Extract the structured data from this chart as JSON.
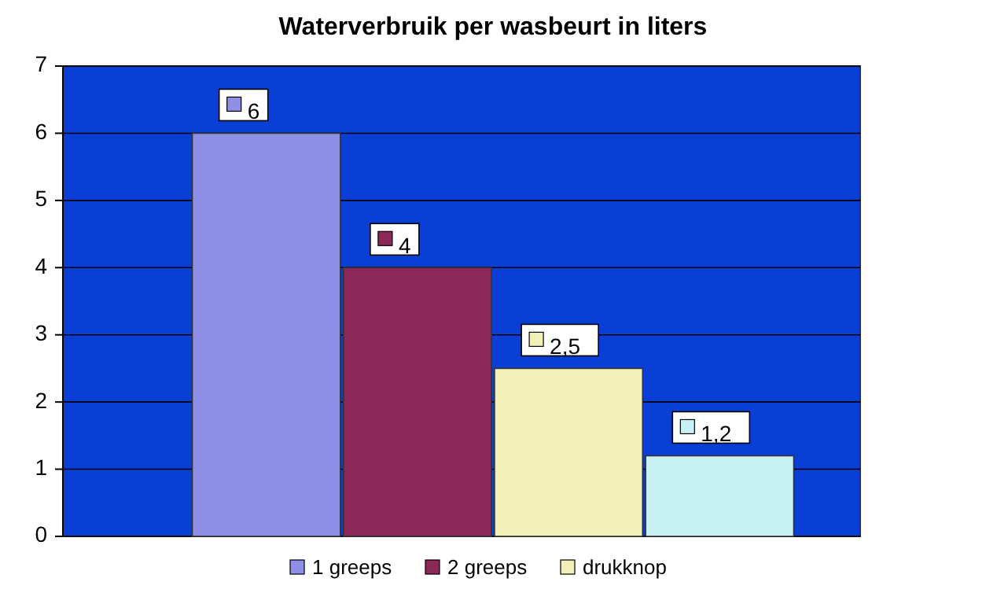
{
  "chart_data": {
    "type": "bar",
    "title": "Waterverbruik per wasbeurt in liters",
    "categories": [
      null
    ],
    "series": [
      {
        "name": "1 greeps",
        "color": "#8f8fe8",
        "values": [
          6
        ],
        "value_labels": [
          "6"
        ]
      },
      {
        "name": "2 greeps",
        "color": "#8b2858",
        "values": [
          4
        ],
        "value_labels": [
          "4"
        ]
      },
      {
        "name": "drukknop",
        "color": "#f0f0b8",
        "values": [
          2.5
        ],
        "value_labels": [
          "2,5"
        ]
      },
      {
        "color": "#c8f2f4",
        "values": [
          1.2
        ],
        "value_labels": [
          "1,2"
        ]
      }
    ],
    "ylim": [
      0,
      7
    ],
    "yticks": [
      0,
      1,
      2,
      3,
      4,
      5,
      6,
      7
    ],
    "grid": "y",
    "legend": "bottom"
  }
}
